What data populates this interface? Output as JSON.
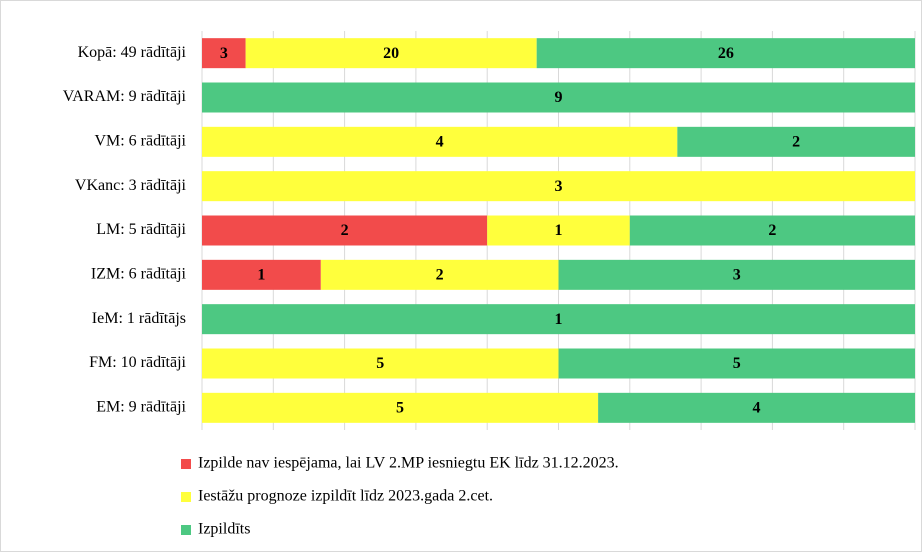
{
  "chart_data": {
    "type": "bar",
    "orientation": "horizontal",
    "stack": "percent",
    "categories": [
      "Kopā: 49 rādītāji",
      "VARAM: 9 rādītāji",
      "VM: 6 rādītāji",
      "VKanc: 3 rādītāji",
      "LM: 5 rādītāji",
      "IZM: 6 rādītāji",
      "IeM: 1 rādītājs",
      "FM: 10 rādītāji",
      "EM: 9 rādītāji"
    ],
    "series": [
      {
        "name": "Izpilde nav iespējama, lai LV 2.MP iesniegtu EK līdz 31.12.2023.",
        "color": "#f24b4b",
        "values": [
          3,
          0,
          0,
          0,
          2,
          1,
          0,
          0,
          0
        ]
      },
      {
        "name": "Iestāžu prognoze izpildīt līdz 2023.gada 2.cet.",
        "color": "#ffff3c",
        "values": [
          20,
          0,
          4,
          3,
          1,
          2,
          0,
          5,
          5
        ]
      },
      {
        "name": "Izpildīts",
        "color": "#4dc882",
        "values": [
          26,
          9,
          2,
          0,
          2,
          3,
          1,
          5,
          4
        ]
      }
    ],
    "xlim": [
      0,
      100
    ],
    "xticks": [
      0,
      10,
      20,
      30,
      40,
      50,
      60,
      70,
      80,
      90,
      100
    ],
    "grid": true,
    "legend": "bottom"
  }
}
